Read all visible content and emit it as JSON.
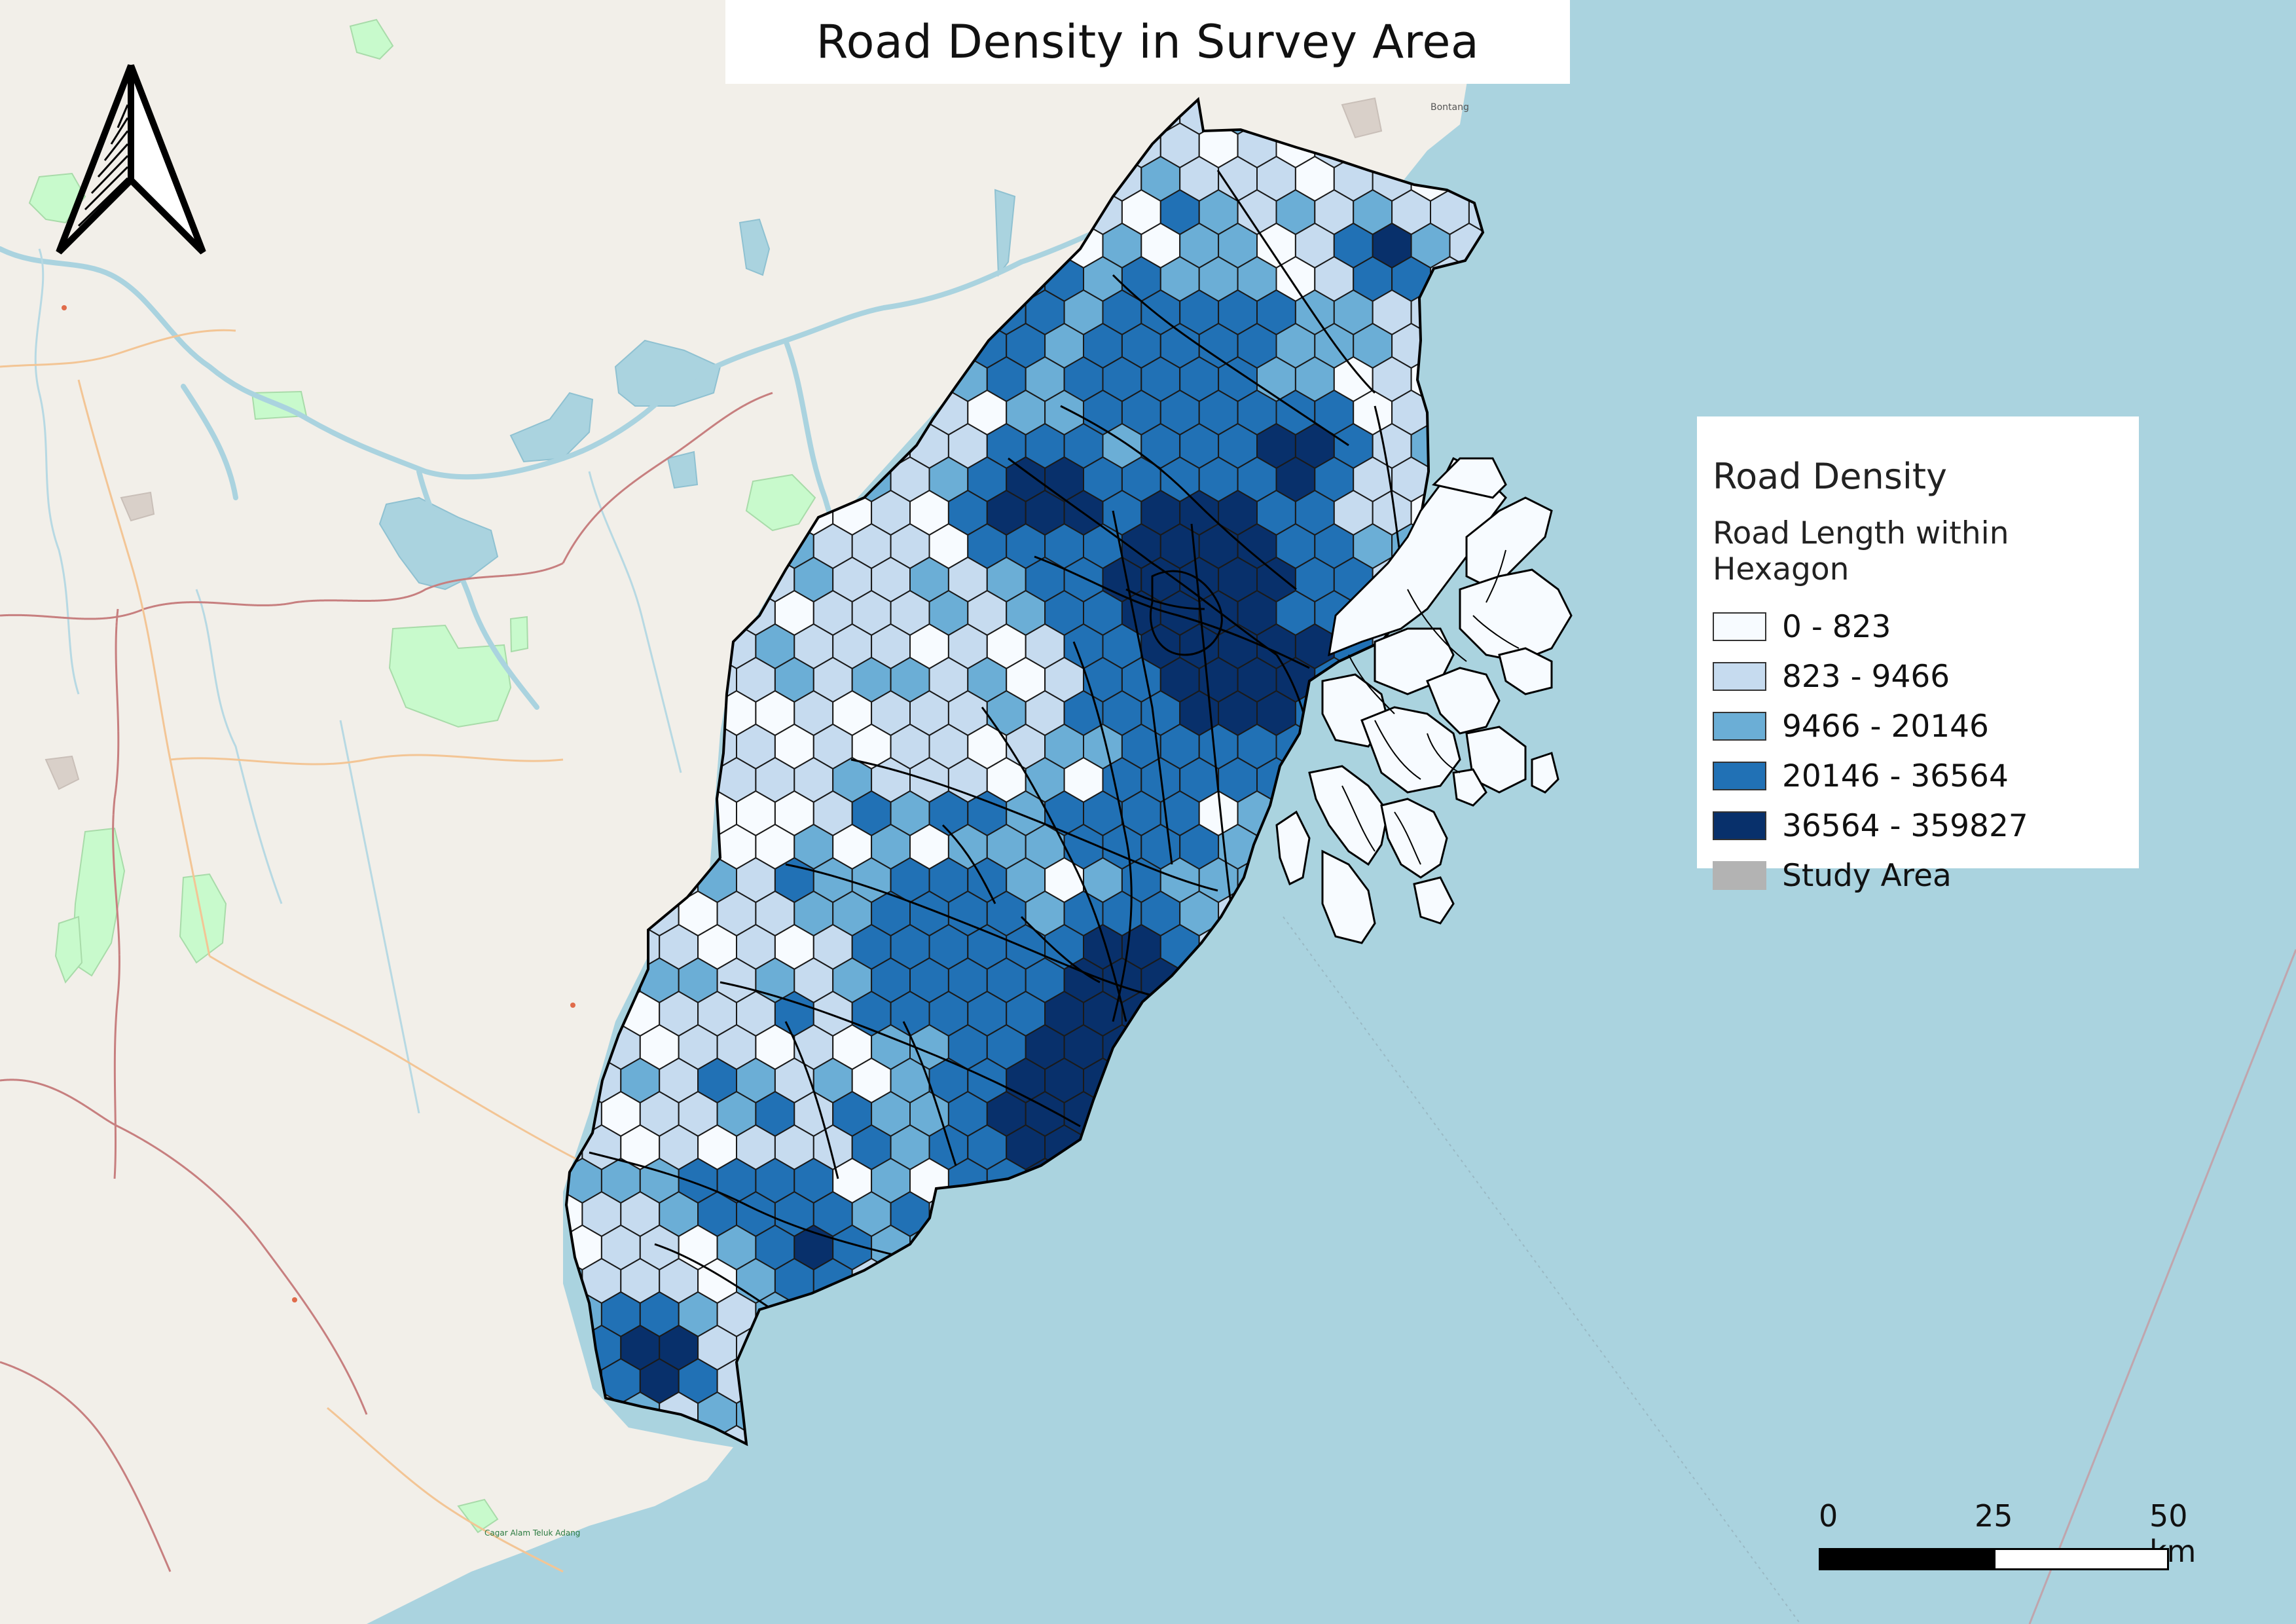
{
  "title": "Road Density in Survey Area",
  "legend": {
    "title": "Road Density",
    "subtitle": "Road Length within Hexagon",
    "items": [
      {
        "label": "0 - 823",
        "color": "#f7fbff"
      },
      {
        "label": "823 - 9466",
        "color": "#c6dbef"
      },
      {
        "label": "9466 - 20146",
        "color": "#6baed6"
      },
      {
        "label": "20146 - 36564",
        "color": "#2171b5"
      },
      {
        "label": "36564 - 359827",
        "color": "#08306b"
      },
      {
        "label": "Study Area",
        "color": "#b3b3b3"
      }
    ]
  },
  "scale_bar": {
    "labels": [
      "0",
      "25",
      "50 km"
    ]
  },
  "map_labels": {
    "bontang": "Bontang",
    "coastal": "Cagar Alam Teluk Adang"
  },
  "colors": {
    "sea": "#aad3df",
    "land": "#f2efe9",
    "park": "#c8facc",
    "river": "#aad3df",
    "border": "#c77f7f",
    "road": "#f3c595"
  }
}
